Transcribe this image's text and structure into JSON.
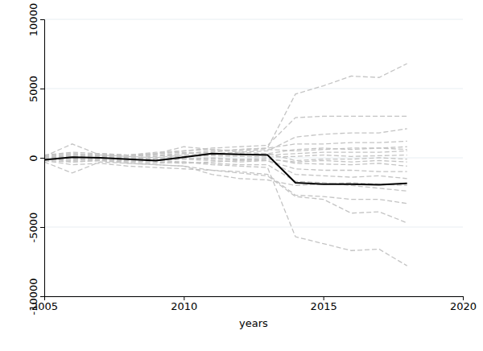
{
  "chart_data": {
    "type": "line",
    "x_label": "years",
    "x": [
      2005,
      2006,
      2007,
      2008,
      2009,
      2010,
      2011,
      2012,
      2013,
      2014,
      2015,
      2016,
      2017,
      2018
    ],
    "xlim": [
      2005,
      2020
    ],
    "xticks": [
      2005,
      2010,
      2015,
      2020
    ],
    "ylim": [
      -10000,
      10000
    ],
    "yticks": [
      -10000,
      -5000,
      0,
      5000,
      10000
    ],
    "grid": true,
    "series": [
      {
        "color": "#c4c4c4",
        "line_style": "dashed",
        "values": [
          0,
          200,
          100,
          0,
          100,
          300,
          400,
          600,
          700,
          4600,
          5200,
          5900,
          5800,
          6800
        ]
      },
      {
        "color": "#c4c4c4",
        "line_style": "dashed",
        "values": [
          0,
          -300,
          -200,
          -300,
          -400,
          -300,
          -500,
          -600,
          -700,
          -5700,
          -6200,
          -6700,
          -6600,
          -7800
        ]
      },
      {
        "color": "#c4c4c4",
        "line_style": "dashed",
        "values": [
          200,
          300,
          200,
          100,
          300,
          500,
          700,
          800,
          900,
          2900,
          3000,
          3000,
          3000,
          3000
        ]
      },
      {
        "color": "#c4c4c4",
        "line_style": "dashed",
        "values": [
          -200,
          -500,
          -400,
          -600,
          -700,
          -800,
          -900,
          -1100,
          -1300,
          -2800,
          -3000,
          -4000,
          -3900,
          -4700
        ]
      },
      {
        "color": "#c4c4c4",
        "line_style": "dashed",
        "values": [
          100,
          1000,
          200,
          100,
          0,
          200,
          300,
          400,
          500,
          1500,
          1700,
          1800,
          1800,
          2100
        ]
      },
      {
        "color": "#c4c4c4",
        "line_style": "dashed",
        "values": [
          -300,
          -1100,
          -300,
          -400,
          -500,
          -600,
          -900,
          -1000,
          -1200,
          -2700,
          -2800,
          -3000,
          -3000,
          -3300
        ]
      },
      {
        "color": "#c4c4c4",
        "line_style": "dashed",
        "values": [
          0,
          100,
          0,
          100,
          200,
          300,
          500,
          600,
          700,
          1000,
          1000,
          1100,
          1100,
          1200
        ]
      },
      {
        "color": "#c4c4c4",
        "line_style": "dashed",
        "values": [
          0,
          -100,
          -200,
          -100,
          -200,
          -300,
          -400,
          -500,
          -500,
          -1700,
          -1800,
          -2000,
          -2200,
          -2400
        ]
      },
      {
        "color": "#c4c4c4",
        "line_style": "dashed",
        "values": [
          100,
          200,
          300,
          200,
          300,
          800,
          600,
          500,
          600,
          500,
          600,
          700,
          700,
          800
        ]
      },
      {
        "color": "#c4c4c4",
        "line_style": "dashed",
        "values": [
          -100,
          -200,
          -100,
          -300,
          -200,
          -100,
          -200,
          -300,
          -200,
          -1200,
          -1300,
          -1400,
          -1300,
          -1500
        ]
      },
      {
        "color": "#c4c4c4",
        "line_style": "dashed",
        "values": [
          50,
          100,
          150,
          100,
          200,
          100,
          200,
          300,
          200,
          300,
          400,
          400,
          400,
          500
        ]
      },
      {
        "color": "#c4c4c4",
        "line_style": "dashed",
        "values": [
          -50,
          -100,
          -150,
          -200,
          -100,
          -50,
          -100,
          -150,
          -200,
          -800,
          -900,
          -900,
          -1000,
          -1000
        ]
      },
      {
        "color": "#c4c4c4",
        "line_style": "dashed",
        "values": [
          0,
          50,
          0,
          -50,
          0,
          100,
          150,
          100,
          50,
          100,
          200,
          100,
          150,
          200
        ]
      },
      {
        "color": "#c4c4c4",
        "line_style": "dashed",
        "values": [
          0,
          -50,
          50,
          0,
          -100,
          -50,
          0,
          -100,
          -50,
          -400,
          -450,
          -500,
          -400,
          -600
        ]
      },
      {
        "color": "#c4c4c4",
        "line_style": "dashed",
        "values": [
          150,
          300,
          200,
          200,
          300,
          400,
          300,
          200,
          300,
          -200,
          -100,
          -100,
          0,
          -100
        ]
      },
      {
        "color": "#c4c4c4",
        "line_style": "dashed",
        "values": [
          -200,
          -300,
          -200,
          -400,
          -500,
          -600,
          -1200,
          -1500,
          -1600,
          -2000,
          -1900,
          -1800,
          -1900,
          -2000
        ]
      },
      {
        "color": "#c4c4c4",
        "line_style": "dashed",
        "values": [
          200,
          400,
          300,
          200,
          400,
          500,
          600,
          400,
          300,
          600,
          700,
          600,
          700,
          600
        ]
      },
      {
        "color": "#c4c4c4",
        "line_style": "dashed",
        "values": [
          -100,
          0,
          -100,
          -200,
          -300,
          -400,
          -300,
          -200,
          -100,
          -300,
          -200,
          -300,
          -200,
          -300
        ]
      },
      {
        "color": "#000000",
        "line_style": "solid",
        "values": [
          -150,
          50,
          0,
          -100,
          -200,
          50,
          300,
          250,
          200,
          -1800,
          -1900,
          -1900,
          -1950,
          -1850
        ]
      }
    ]
  }
}
